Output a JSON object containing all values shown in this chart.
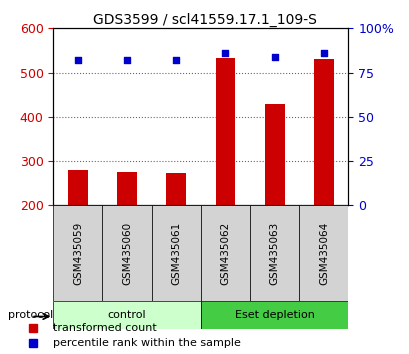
{
  "title": "GDS3599 / scl41559.17.1_109-S",
  "samples": [
    "GSM435059",
    "GSM435060",
    "GSM435061",
    "GSM435062",
    "GSM435063",
    "GSM435064"
  ],
  "transformed_counts": [
    280,
    275,
    273,
    533,
    430,
    530
  ],
  "percentile_ranks": [
    82,
    82,
    82,
    86,
    84,
    86
  ],
  "ylim_left": [
    200,
    600
  ],
  "ylim_right": [
    0,
    100
  ],
  "yticks_left": [
    200,
    300,
    400,
    500,
    600
  ],
  "yticks_right": [
    0,
    25,
    50,
    75,
    100
  ],
  "ytick_labels_right": [
    "0",
    "25",
    "50",
    "75",
    "100%"
  ],
  "bar_color": "#cc0000",
  "dot_color": "#0000cc",
  "bar_bottom": 200,
  "groups": [
    {
      "label": "control",
      "samples": [
        0,
        1,
        2
      ],
      "color": "#ccffcc"
    },
    {
      "label": "Eset depletion",
      "samples": [
        3,
        4,
        5
      ],
      "color": "#44cc44"
    }
  ],
  "protocol_label": "protocol",
  "legend_bar_label": "transformed count",
  "legend_dot_label": "percentile rank within the sample",
  "title_color": "#000000",
  "left_axis_color": "#cc0000",
  "right_axis_color": "#0000cc",
  "grid_color": "#000000",
  "background_plot": "#ffffff",
  "background_sample": "#d3d3d3",
  "bar_width": 0.4
}
